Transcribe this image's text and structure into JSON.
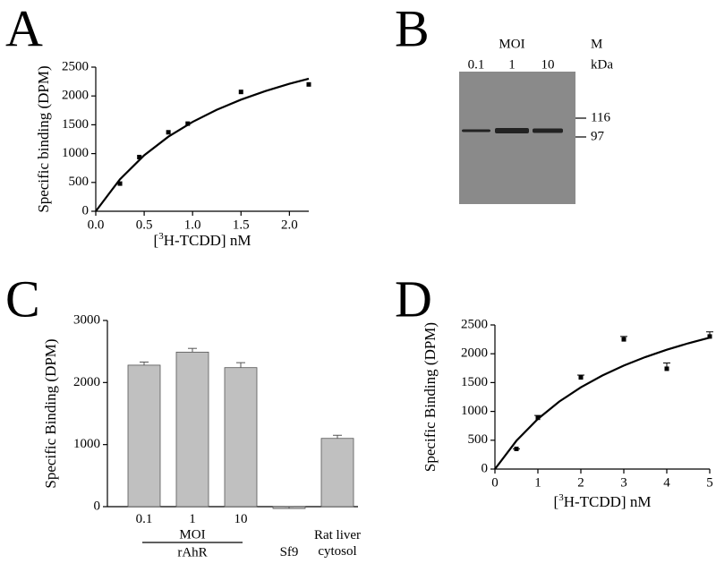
{
  "chart_data": [
    {
      "type": "scatter",
      "panel": "A",
      "y_label": "Specific binding (DPM)",
      "x_label": {
        "prefix": "[",
        "sup": "3",
        "rest": "H-TCDD] nM"
      },
      "points": {
        "x": [
          0.25,
          0.45,
          0.75,
          0.95,
          1.5,
          2.2
        ],
        "y": [
          480,
          940,
          1370,
          1520,
          2070,
          2200
        ]
      },
      "curve": {
        "x": [
          0,
          0.25,
          0.5,
          0.75,
          1,
          1.25,
          1.5,
          1.75,
          2,
          2.2
        ],
        "y": [
          0,
          555,
          970,
          1293,
          1550,
          1761,
          1936,
          2084,
          2211,
          2300
        ]
      },
      "color": "#000000",
      "xlim": [
        0,
        2.2
      ],
      "xticks": [
        {
          "value": 0,
          "label": "0.0"
        },
        0.5,
        {
          "value": 1,
          "label": "1.0"
        },
        1.5,
        {
          "value": 2,
          "label": "2.0"
        }
      ],
      "ylim": [
        0,
        2500
      ],
      "yticks": [
        0,
        500,
        1000,
        1500,
        2000,
        2500
      ]
    },
    {
      "type": "blot",
      "panel": "B",
      "group_label": "MOI",
      "lanes": [
        "0.1",
        "1",
        "10"
      ],
      "marker_title": "M",
      "marker_unit": "kDa",
      "markers": [
        116,
        97
      ]
    },
    {
      "type": "bar",
      "panel": "C",
      "y_label": "Specific Binding (DPM)",
      "categories": [
        "0.1",
        "1",
        "10",
        "Sf9",
        "Rat liver cytosol"
      ],
      "group_title": "MOI",
      "group_name": "rAhR",
      "values": [
        2280,
        2490,
        2240,
        -30,
        1100
      ],
      "errors": [
        50,
        60,
        80,
        30,
        50
      ],
      "color": "#c0c0c0",
      "ylim": [
        0,
        3000
      ],
      "yticks": [
        0,
        1000,
        2000,
        3000
      ]
    },
    {
      "type": "scatter",
      "panel": "D",
      "y_label": "Specific Binding (DPM)",
      "x_label": {
        "prefix": "[",
        "sup": "3",
        "rest": "H-TCDD] nM"
      },
      "points": {
        "x": [
          0.5,
          1,
          2,
          3,
          4,
          5
        ],
        "y": [
          350,
          890,
          1590,
          2250,
          1740,
          2300
        ],
        "errors": [
          0,
          40,
          40,
          50,
          100,
          80
        ]
      },
      "curve": {
        "x": [
          0,
          0.5,
          1,
          1.5,
          2,
          2.5,
          3,
          3.5,
          4,
          4.5,
          5
        ],
        "y": [
          0,
          491,
          870,
          1172,
          1418,
          1622,
          1795,
          1943,
          2070,
          2182,
          2280
        ]
      },
      "color": "#000000",
      "xlim": [
        0,
        5
      ],
      "xticks": [
        0,
        1,
        2,
        3,
        4,
        5
      ],
      "ylim": [
        0,
        2500
      ],
      "yticks": [
        0,
        500,
        1000,
        1500,
        2000,
        2500
      ]
    }
  ]
}
